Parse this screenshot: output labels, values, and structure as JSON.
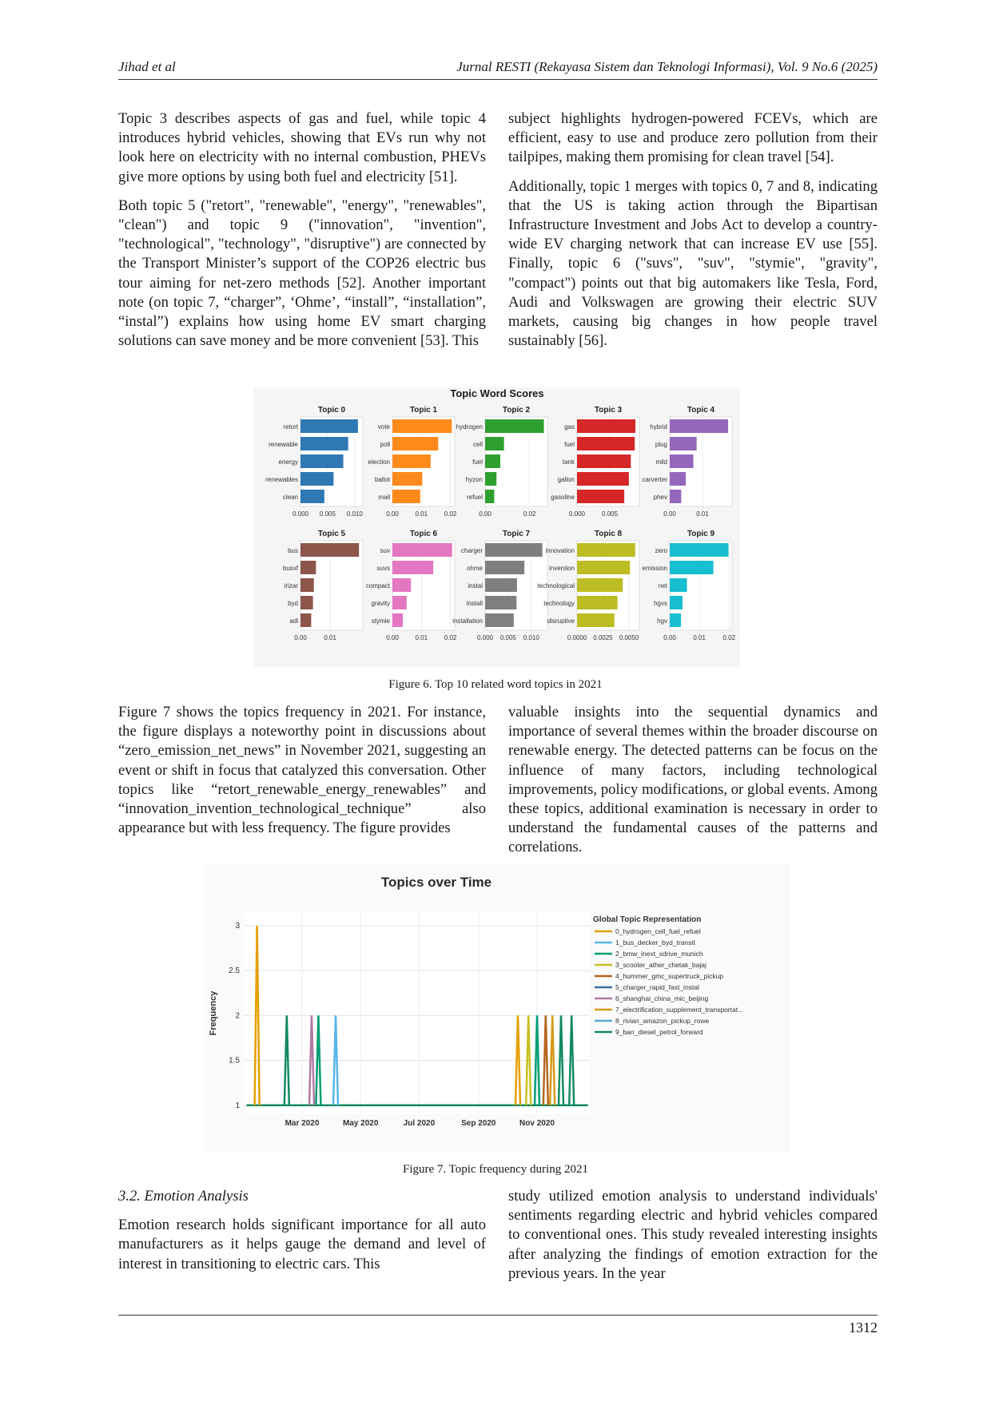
{
  "header": {
    "left": "Jihad et al",
    "right": "Jurnal RESTI (Rekayasa Sistem dan Teknologi Informasi), Vol. 9 No.6 (2025)"
  },
  "top_left": {
    "p1": "Topic 3 describes aspects of gas and fuel, while topic 4 introduces hybrid vehicles, showing that EVs run why not look here on electricity with no internal combustion, PHEVs give more options by using both fuel and electricity [51].",
    "p2": "Both topic 5 (\"retort\", \"renewable\", \"energy\", \"renewables\", \"clean\") and topic 9 (\"innovation\", \"invention\", \"technological\", \"technology\", \"disruptive\") are connected by the Transport Minister’s support of the COP26 electric bus tour aiming for net-zero methods [52]. Another important note (on topic 7, “charger”, ‘Ohme’, “install”, “installation”, “instal”) explains how using home EV smart charging solutions can save money and be more convenient [53]. This"
  },
  "top_right": {
    "p1": "subject highlights hydrogen-powered FCEVs, which are efficient, easy to use and produce zero pollution from their tailpipes, making them promising for clean travel [54].",
    "p2": "Additionally, topic 1 merges with topics 0, 7 and 8, indicating that the US is taking action through the Bipartisan Infrastructure Investment and Jobs Act to develop a country-wide EV charging network that can increase EV use [55]. Finally, topic 6 (\"suvs\", \"suv\", \"stymie\", \"gravity\", \"compact\") points out that big automakers like Tesla, Ford, Audi and Volkswagen are growing their electric SUV markets, causing big changes in how people travel sustainably [56]."
  },
  "figure6": {
    "title": "Topic Word Scores",
    "caption": "Figure 6. Top 10 related word topics in 2021"
  },
  "mid_left": {
    "p1": "Figure 7 shows the topics frequency in 2021. For instance, the figure displays a noteworthy point in discussions about “zero_emission_net_news” in November 2021, suggesting an event or shift in focus that catalyzed this conversation. Other topics like “retort_renewable_energy_renewables” and “innovation_invention_technological_technique” also appearance but with less frequency. The figure provides"
  },
  "mid_right": {
    "p1": "valuable insights into the sequential dynamics and importance of several themes within the broader discourse on renewable energy. The detected patterns can be focus on the influence of many factors, including technological improvements, policy modifications, or global events. Among these topics, additional examination is necessary in order to understand the fundamental causes of the patterns and correlations."
  },
  "figure7": {
    "caption": "Figure 7. Topic frequency during 2021"
  },
  "section": {
    "heading": "3.2. Emotion Analysis",
    "left": "Emotion research holds significant importance for all auto manufacturers as it helps gauge the demand and level of interest in transitioning to electric cars. This",
    "right": "study utilized emotion analysis to understand individuals' sentiments regarding electric and hybrid vehicles compared to conventional ones. This study revealed interesting insights after analyzing the findings of emotion extraction for the previous years. In the year"
  },
  "footer": {
    "page": "1312"
  },
  "chart_data": [
    {
      "type": "bar",
      "orientation": "horizontal",
      "title": "Topic Word Scores",
      "panels": [
        {
          "name": "Topic 0",
          "color": "#2f78b4",
          "words": [
            "retort",
            "renewable",
            "energy",
            "renewables",
            "clean"
          ],
          "values": [
            0.0106,
            0.0088,
            0.0079,
            0.0061,
            0.0044
          ],
          "ticks": [
            "0.000",
            "0.005",
            "0.010"
          ],
          "xlim": [
            0,
            0.0115
          ]
        },
        {
          "name": "Topic 1",
          "color": "#ff8a1c",
          "words": [
            "vote",
            "poll",
            "election",
            "ballot",
            "mail"
          ],
          "values": [
            0.0205,
            0.0158,
            0.0132,
            0.0103,
            0.0096
          ],
          "ticks": [
            "0.00",
            "0.01",
            "0.02"
          ],
          "xlim": [
            0,
            0.0215
          ]
        },
        {
          "name": "Topic 2",
          "color": "#2fa02f",
          "words": [
            "hydrogen",
            "cell",
            "fuel",
            "hyzon",
            "refuel"
          ],
          "values": [
            0.0264,
            0.0085,
            0.0068,
            0.0051,
            0.0041
          ],
          "ticks": [
            "0.00",
            "0.02"
          ],
          "xlim": [
            0,
            0.028
          ]
        },
        {
          "name": "Topic 3",
          "color": "#d62728",
          "words": [
            "gas",
            "fuel",
            "tank",
            "gallon",
            "gasoline"
          ],
          "values": [
            0.0089,
            0.0088,
            0.0082,
            0.0079,
            0.0072
          ],
          "ticks": [
            "0.000",
            "0.005"
          ],
          "xlim": [
            0,
            0.0095
          ]
        },
        {
          "name": "Topic 4",
          "color": "#9467bd",
          "words": [
            "hybrid",
            "plug",
            "mild",
            "carverter",
            "phev"
          ],
          "values": [
            0.0178,
            0.0082,
            0.0072,
            0.0049,
            0.0035
          ],
          "ticks": [
            "0.00",
            "0.01"
          ],
          "xlim": [
            0,
            0.019
          ]
        },
        {
          "name": "Topic 5",
          "color": "#8c564b",
          "words": [
            "bus",
            "busxf",
            "irizar",
            "byd",
            "adl"
          ],
          "values": [
            0.0197,
            0.0052,
            0.0045,
            0.0042,
            0.0036
          ],
          "ticks": [
            "0.00",
            "0.01"
          ],
          "xlim": [
            0,
            0.021
          ]
        },
        {
          "name": "Topic 6",
          "color": "#e377c2",
          "words": [
            "suv",
            "suvs",
            "compact",
            "gravity",
            "stymie"
          ],
          "values": [
            0.0206,
            0.0141,
            0.0064,
            0.0049,
            0.0036
          ],
          "ticks": [
            "0.00",
            "0.01",
            "0.02"
          ],
          "xlim": [
            0,
            0.0215
          ]
        },
        {
          "name": "Topic 7",
          "color": "#7f7f7f",
          "words": [
            "charger",
            "ohme",
            "instal",
            "install",
            "installation"
          ],
          "values": [
            0.0124,
            0.0085,
            0.0069,
            0.0068,
            0.0062
          ],
          "ticks": [
            "0.000",
            "0.005",
            "0.010"
          ],
          "xlim": [
            0,
            0.0135
          ]
        },
        {
          "name": "Topic 8",
          "color": "#bcbd22",
          "words": [
            "innovation",
            "invention",
            "technological",
            "technology",
            "disruptive"
          ],
          "values": [
            0.0056,
            0.0051,
            0.0044,
            0.0039,
            0.0036
          ],
          "ticks": [
            "0.0000",
            "0.0025",
            "0.0050"
          ],
          "xlim": [
            0,
            0.006
          ]
        },
        {
          "name": "Topic 9",
          "color": "#17becf",
          "words": [
            "zero",
            "emission",
            "net",
            "hgvs",
            "hgv"
          ],
          "values": [
            0.0198,
            0.0147,
            0.0058,
            0.0043,
            0.0038
          ],
          "ticks": [
            "0.00",
            "0.01",
            "0.02"
          ],
          "xlim": [
            0,
            0.021
          ]
        }
      ]
    },
    {
      "type": "line",
      "title": "Topics over Time",
      "ylabel": "Frequency",
      "x_ticks": [
        "Mar 2020",
        "May 2020",
        "Jul 2020",
        "Sep 2020",
        "Nov 2020"
      ],
      "y_ticks": [
        "1",
        "1.5",
        "2",
        "2.5",
        "3"
      ],
      "ylim": [
        0.9,
        3.15
      ],
      "legend_title": "Global Topic Representation",
      "legend_position": "right",
      "grid": true,
      "series": [
        {
          "name": "0_hydrogen_cell_fuel_refuel",
          "color": "#e69f00",
          "spikes": [
            {
              "x": -47,
              "y": 3
            },
            {
              "x": 225,
              "y": 2
            }
          ]
        },
        {
          "name": "1_bus_decker_byd_transit",
          "color": "#56b4e9",
          "spikes": [
            {
              "x": 35,
              "y": 2
            }
          ]
        },
        {
          "name": "2_bmw_inext_xdrive_munich",
          "color": "#009e73",
          "spikes": [
            {
              "x": 17,
              "y": 2
            },
            {
              "x": 245,
              "y": 2
            }
          ]
        },
        {
          "name": "3_scooter_ather_chetak_bajaj",
          "color": "#c8c020",
          "spikes": [
            {
              "x": 236,
              "y": 2
            }
          ]
        },
        {
          "name": "4_hummer_gmc_supertruck_pickup",
          "color": "#b5651d",
          "spikes": [
            {
              "x": 254,
              "y": 2
            }
          ]
        },
        {
          "name": "5_charger_rapid_fast_instal",
          "color": "#3b6ea5",
          "spikes": []
        },
        {
          "name": "6_shanghai_china_mic_beijing",
          "color": "#b07aa1",
          "spikes": [
            {
              "x": 10,
              "y": 2
            }
          ]
        },
        {
          "name": "7_electrification_supplement_transportat...",
          "color": "#d69a1a",
          "spikes": [
            {
              "x": 261,
              "y": 2
            }
          ]
        },
        {
          "name": "8_rivian_amazon_pickup_rowe",
          "color": "#5aa7d6",
          "spikes": []
        },
        {
          "name": "9_ban_diesel_petrol_forward",
          "color": "#138a5e",
          "spikes": [
            {
              "x": -16,
              "y": 2
            },
            {
              "x": 270,
              "y": 2
            },
            {
              "x": 281,
              "y": 2
            }
          ]
        }
      ]
    }
  ]
}
